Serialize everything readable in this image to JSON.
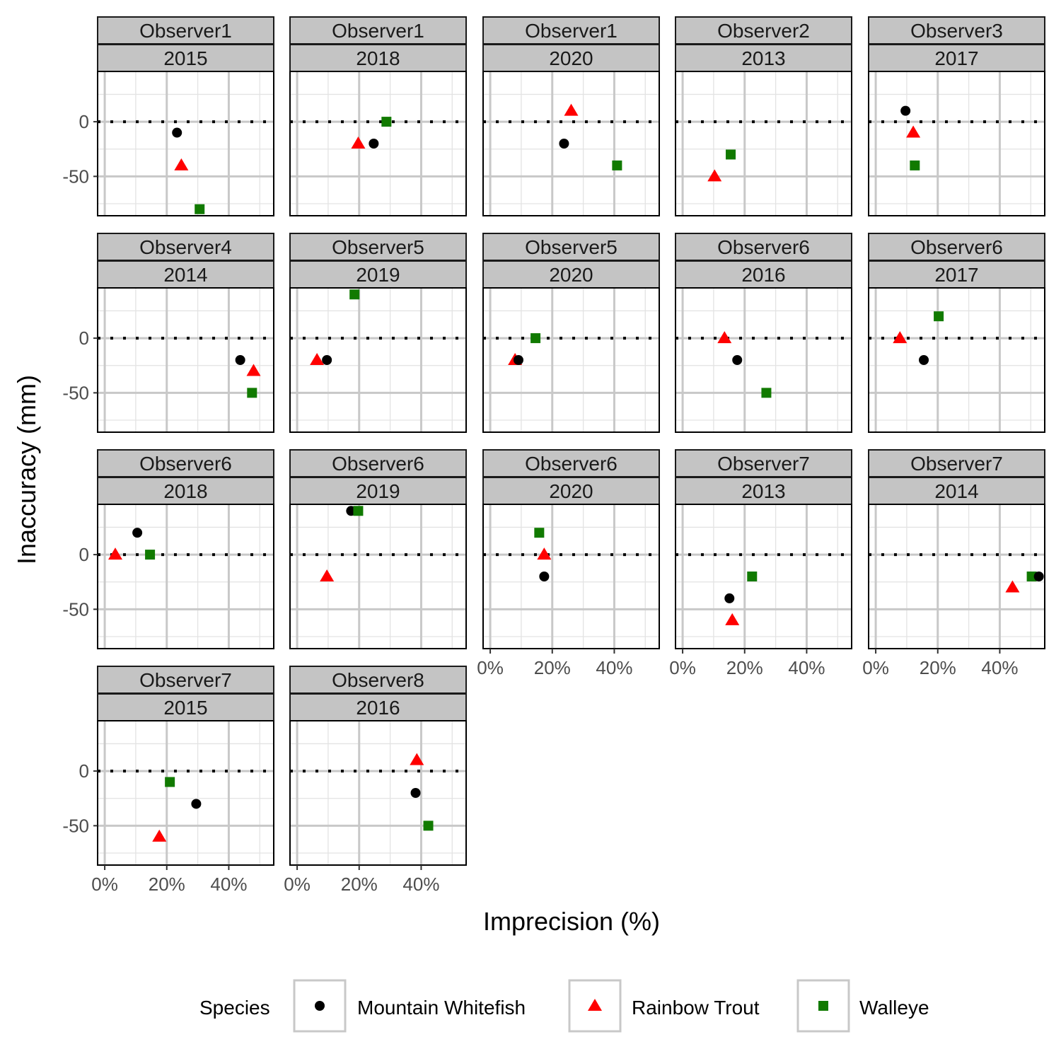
{
  "chart_data": {
    "type": "scatter",
    "xlabel": "Imprecision (%)",
    "ylabel": "Inaccuracy (mm)",
    "xlim": [
      -2.3,
      54.5
    ],
    "ylim": [
      -86,
      46
    ],
    "x_ticks": [
      0,
      20,
      40
    ],
    "x_tick_labels": [
      "0%",
      "20%",
      "40%"
    ],
    "y_ticks": [
      0,
      -50
    ],
    "y_tick_labels": [
      "0",
      "-50"
    ],
    "reference_line": 0,
    "grid": true,
    "legend": {
      "title": "Species",
      "position": "bottom",
      "entries": [
        {
          "name": "Mountain Whitefish",
          "shape": "circle",
          "color": "#000000"
        },
        {
          "name": "Rainbow Trout",
          "shape": "triangle",
          "color": "#ff0000"
        },
        {
          "name": "Walleye",
          "shape": "square",
          "color": "#117a00"
        }
      ]
    },
    "panels": [
      {
        "observer": "Observer1",
        "year": "2015",
        "points": [
          {
            "species": "Mountain Whitefish",
            "x": 23.3,
            "y": -10
          },
          {
            "species": "Rainbow Trout",
            "x": 24.7,
            "y": -40
          },
          {
            "species": "Walleye",
            "x": 30.6,
            "y": -80
          }
        ]
      },
      {
        "observer": "Observer1",
        "year": "2018",
        "points": [
          {
            "species": "Walleye",
            "x": 28.8,
            "y": 0
          },
          {
            "species": "Rainbow Trout",
            "x": 19.7,
            "y": -20
          },
          {
            "species": "Mountain Whitefish",
            "x": 24.7,
            "y": -20
          }
        ]
      },
      {
        "observer": "Observer1",
        "year": "2020",
        "points": [
          {
            "species": "Rainbow Trout",
            "x": 26.1,
            "y": 10
          },
          {
            "species": "Mountain Whitefish",
            "x": 23.8,
            "y": -20
          },
          {
            "species": "Walleye",
            "x": 40.9,
            "y": -40
          }
        ]
      },
      {
        "observer": "Observer2",
        "year": "2013",
        "points": [
          {
            "species": "Walleye",
            "x": 15.5,
            "y": -30
          },
          {
            "species": "Rainbow Trout",
            "x": 10.3,
            "y": -50
          }
        ]
      },
      {
        "observer": "Observer3",
        "year": "2017",
        "points": [
          {
            "species": "Mountain Whitefish",
            "x": 9.6,
            "y": 10
          },
          {
            "species": "Rainbow Trout",
            "x": 12.1,
            "y": -10
          },
          {
            "species": "Walleye",
            "x": 12.6,
            "y": -40
          }
        ]
      },
      {
        "observer": "Observer4",
        "year": "2014",
        "points": [
          {
            "species": "Mountain Whitefish",
            "x": 43.7,
            "y": -20
          },
          {
            "species": "Rainbow Trout",
            "x": 48,
            "y": -30
          },
          {
            "species": "Walleye",
            "x": 47.5,
            "y": -50
          }
        ]
      },
      {
        "observer": "Observer5",
        "year": "2019",
        "points": [
          {
            "species": "Walleye",
            "x": 18.5,
            "y": 40
          },
          {
            "species": "Rainbow Trout",
            "x": 6.4,
            "y": -20
          },
          {
            "species": "Mountain Whitefish",
            "x": 9.6,
            "y": -20
          }
        ]
      },
      {
        "observer": "Observer5",
        "year": "2020",
        "points": [
          {
            "species": "Walleye",
            "x": 14.6,
            "y": 0
          },
          {
            "species": "Rainbow Trout",
            "x": 8,
            "y": -20
          },
          {
            "species": "Mountain Whitefish",
            "x": 9.1,
            "y": -20
          }
        ]
      },
      {
        "observer": "Observer6",
        "year": "2016",
        "points": [
          {
            "species": "Rainbow Trout",
            "x": 13.5,
            "y": 0
          },
          {
            "species": "Mountain Whitefish",
            "x": 17.6,
            "y": -20
          },
          {
            "species": "Walleye",
            "x": 27,
            "y": -50
          }
        ]
      },
      {
        "observer": "Observer6",
        "year": "2017",
        "points": [
          {
            "species": "Walleye",
            "x": 20.3,
            "y": 20
          },
          {
            "species": "Rainbow Trout",
            "x": 7.8,
            "y": 0
          },
          {
            "species": "Mountain Whitefish",
            "x": 15.5,
            "y": -20
          }
        ]
      },
      {
        "observer": "Observer6",
        "year": "2018",
        "points": [
          {
            "species": "Mountain Whitefish",
            "x": 10.5,
            "y": 20
          },
          {
            "species": "Rainbow Trout",
            "x": 3.4,
            "y": 0
          },
          {
            "species": "Walleye",
            "x": 14.6,
            "y": 0
          }
        ]
      },
      {
        "observer": "Observer6",
        "year": "2019",
        "points": [
          {
            "species": "Mountain Whitefish",
            "x": 17.4,
            "y": 40
          },
          {
            "species": "Walleye",
            "x": 19.7,
            "y": 40
          },
          {
            "species": "Rainbow Trout",
            "x": 9.6,
            "y": -20
          }
        ]
      },
      {
        "observer": "Observer6",
        "year": "2020",
        "points": [
          {
            "species": "Walleye",
            "x": 15.8,
            "y": 20
          },
          {
            "species": "Rainbow Trout",
            "x": 17.4,
            "y": 0
          },
          {
            "species": "Mountain Whitefish",
            "x": 17.4,
            "y": -20
          }
        ]
      },
      {
        "observer": "Observer7",
        "year": "2013",
        "points": [
          {
            "species": "Mountain Whitefish",
            "x": 15.1,
            "y": -40
          },
          {
            "species": "Rainbow Trout",
            "x": 16,
            "y": -60
          },
          {
            "species": "Walleye",
            "x": 22.4,
            "y": -20
          }
        ]
      },
      {
        "observer": "Observer7",
        "year": "2014",
        "points": [
          {
            "species": "Rainbow Trout",
            "x": 44.1,
            "y": -30
          },
          {
            "species": "Walleye",
            "x": 50.3,
            "y": -20
          },
          {
            "species": "Mountain Whitefish",
            "x": 52.6,
            "y": -20
          }
        ]
      },
      {
        "observer": "Observer7",
        "year": "2015",
        "points": [
          {
            "species": "Walleye",
            "x": 21,
            "y": -10
          },
          {
            "species": "Mountain Whitefish",
            "x": 29.5,
            "y": -30
          },
          {
            "species": "Rainbow Trout",
            "x": 17.6,
            "y": -60
          }
        ]
      },
      {
        "observer": "Observer8",
        "year": "2016",
        "points": [
          {
            "species": "Rainbow Trout",
            "x": 38.6,
            "y": 10
          },
          {
            "species": "Mountain Whitefish",
            "x": 38.2,
            "y": -20
          },
          {
            "species": "Walleye",
            "x": 42.3,
            "y": -50
          }
        ]
      }
    ]
  }
}
